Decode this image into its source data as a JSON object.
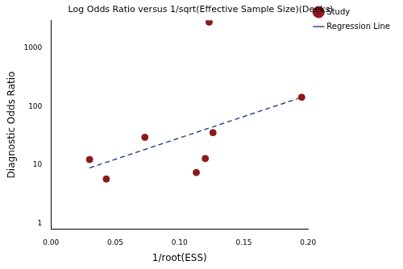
{
  "chart_data": {
    "type": "scatter",
    "title": "Log Odds Ratio versus 1/sqrt(Effective Sample Size)(Deeks)",
    "x_label": "1/root(ESS)",
    "y_label": "Diagnostic Odds Ratio",
    "log": "y",
    "grid": false,
    "legend": "top right",
    "xlim": [
      0,
      0.2
    ],
    "xticks": [
      {
        "value": 0,
        "label": "0.00"
      },
      {
        "value": 0.05,
        "label": "0.05"
      },
      {
        "value": 0.1,
        "label": "0.10"
      },
      {
        "value": 0.15,
        "label": "0.15"
      },
      {
        "value": 0.2,
        "label": "0.20"
      }
    ],
    "ylim": [
      0.8,
      3000
    ],
    "yticks": [
      1,
      10,
      100,
      1000
    ],
    "series": [
      {
        "name": "Study",
        "type": "scatter",
        "color": "#8b1a1a",
        "marker": "circle",
        "x": [
          0.03,
          0.043,
          0.073,
          0.113,
          0.12,
          0.123,
          0.126,
          0.195
        ],
        "values": [
          12.5,
          5.8,
          30,
          7.5,
          13,
          2800,
          36,
          145
        ]
      },
      {
        "name": "Regression Line",
        "type": "line",
        "color": "#2b4c8c",
        "line_style": "dashed",
        "x": [
          0.03,
          0.195
        ],
        "values": [
          9,
          145
        ]
      }
    ]
  }
}
